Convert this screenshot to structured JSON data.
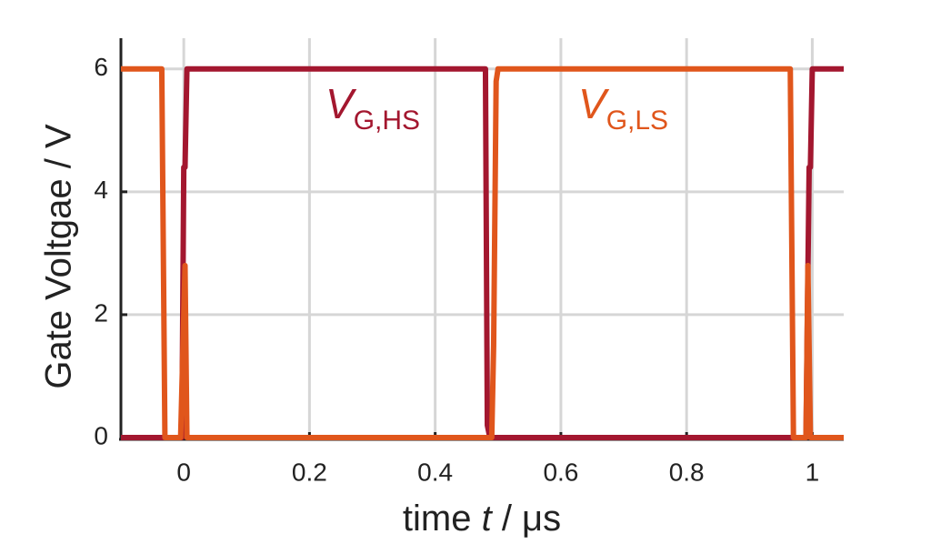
{
  "chart_data": {
    "type": "line",
    "xlabel": {
      "text": "time",
      "var": "t",
      "unit": "/ μs"
    },
    "ylabel": "Gate Voltgae / V",
    "xlim": [
      -0.1,
      1.05
    ],
    "ylim": [
      0,
      6.5
    ],
    "xticks": [
      0,
      0.2,
      0.4,
      0.6,
      0.8,
      1
    ],
    "yticks": [
      0,
      2,
      4,
      6
    ],
    "grid": true,
    "series": [
      {
        "name": "G,HS",
        "symbol": "V",
        "color": "#a3172f",
        "x": [
          -0.1,
          -0.003,
          0,
          0.002,
          0.005,
          0.48,
          0.483,
          0.487,
          0.99,
          0.995,
          0.997,
          1.0,
          1.05
        ],
        "values": [
          0,
          0,
          4.4,
          4.4,
          6,
          6,
          0.2,
          0,
          0,
          4.4,
          4.4,
          6,
          6
        ]
      },
      {
        "name": "G,LS",
        "symbol": "V",
        "color": "#e0561c",
        "x": [
          -0.1,
          -0.035,
          -0.03,
          -0.005,
          0.002,
          0.005,
          0.49,
          0.493,
          0.497,
          0.5,
          0.965,
          0.97,
          0.99,
          0.993,
          0.997,
          1.05
        ],
        "values": [
          6,
          6,
          0,
          0,
          2.8,
          0,
          0,
          1.5,
          5.8,
          6,
          6,
          0,
          0,
          2.8,
          0,
          0
        ]
      }
    ]
  }
}
